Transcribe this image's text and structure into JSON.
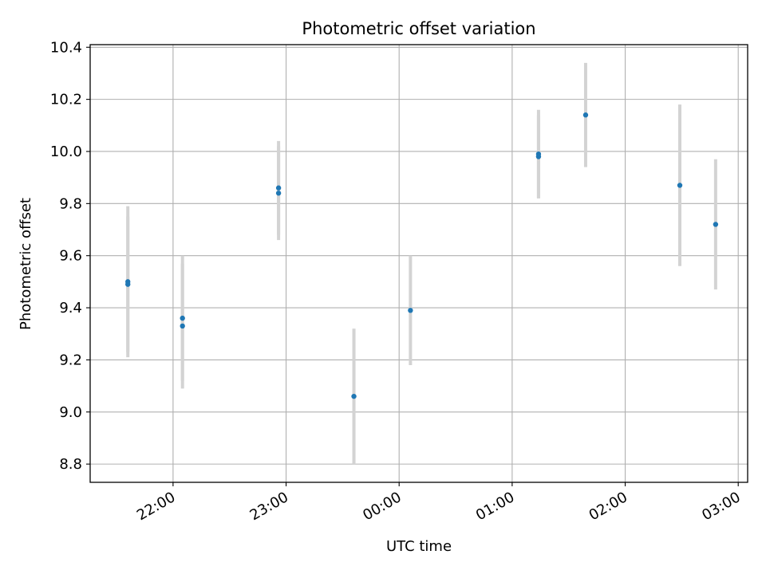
{
  "chart_data": {
    "type": "scatter",
    "title": "Photometric offset variation",
    "xlabel": "UTC time",
    "ylabel": "Photometric offset",
    "xlim": [
      "21:16",
      "03:05"
    ],
    "ylim": [
      8.73,
      10.41
    ],
    "grid": true,
    "x_ticks": [
      "22:00",
      "23:00",
      "00:00",
      "01:00",
      "02:00",
      "03:00"
    ],
    "y_ticks": [
      8.8,
      9.0,
      9.2,
      9.4,
      9.6,
      9.8,
      10.0,
      10.2,
      10.4
    ],
    "y_tick_labels": [
      "8.8",
      "9.0",
      "9.2",
      "9.4",
      "9.6",
      "9.8",
      "10.0",
      "10.2",
      "10.4"
    ],
    "series": [
      {
        "marker_color": "#1f77b4",
        "errorbar_color": "#d3d3d3",
        "points": [
          {
            "time": "21:36",
            "y": 9.5,
            "err": 0.29
          },
          {
            "time": "21:36",
            "y": 9.49,
            "err": 0.26
          },
          {
            "time": "22:05",
            "y": 9.36,
            "err": 0.24
          },
          {
            "time": "22:05",
            "y": 9.33,
            "err": 0.24
          },
          {
            "time": "22:56",
            "y": 9.86,
            "err": 0.18
          },
          {
            "time": "22:56",
            "y": 9.84,
            "err": 0.18
          },
          {
            "time": "23:36",
            "y": 9.06,
            "err": 0.26
          },
          {
            "time": "00:06",
            "y": 9.39,
            "err": 0.21
          },
          {
            "time": "01:14",
            "y": 9.98,
            "err": 0.16
          },
          {
            "time": "01:14",
            "y": 9.99,
            "err": 0.17
          },
          {
            "time": "01:39",
            "y": 10.14,
            "err": 0.2
          },
          {
            "time": "02:29",
            "y": 9.87,
            "err": 0.31
          },
          {
            "time": "02:48",
            "y": 9.72,
            "err": 0.25
          }
        ]
      }
    ]
  }
}
